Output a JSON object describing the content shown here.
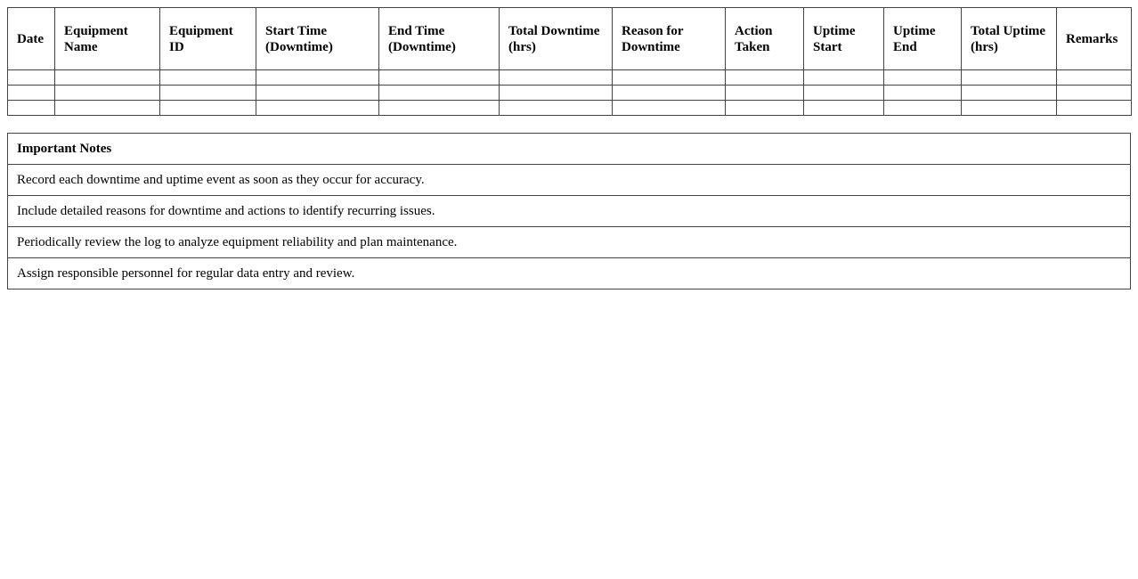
{
  "log_table": {
    "headers": [
      "Date",
      "Equipment Name",
      "Equipment ID",
      "Start Time (Downtime)",
      "End Time (Downtime)",
      "Total Downtime (hrs)",
      "Reason for Downtime",
      "Action Taken",
      "Uptime Start",
      "Uptime End",
      "Total Uptime (hrs)",
      "Remarks"
    ],
    "empty_rows": 3
  },
  "notes": {
    "title": "Important Notes",
    "items": [
      "Record each downtime and uptime event as soon as they occur for accuracy.",
      "Include detailed reasons for downtime and actions to identify recurring issues.",
      "Periodically review the log to analyze equipment reliability and plan maintenance.",
      "Assign responsible personnel for regular data entry and review."
    ]
  }
}
